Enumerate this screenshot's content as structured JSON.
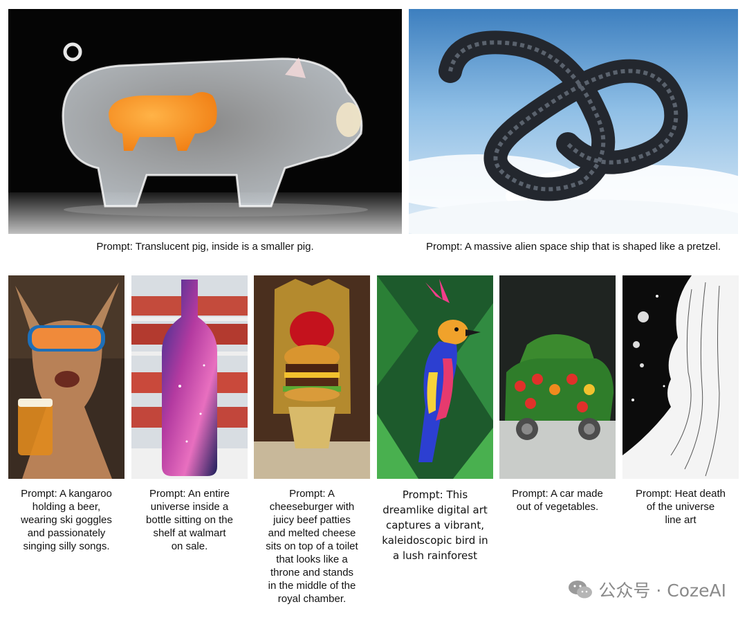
{
  "top_row": [
    {
      "id": "pig",
      "caption": "Prompt: Translucent pig, inside is a smaller pig."
    },
    {
      "id": "pretzel",
      "caption": "Prompt: A massive alien space ship that is shaped like a pretzel."
    }
  ],
  "bottom_row": [
    {
      "id": "kangaroo",
      "lines": [
        "Prompt: A kangaroo",
        "holding a beer,",
        "wearing ski goggles",
        "and passionately",
        "singing silly songs."
      ]
    },
    {
      "id": "bottle",
      "lines": [
        "Prompt: An entire",
        "universe inside a",
        "bottle sitting on the",
        "shelf at walmart",
        "on sale."
      ]
    },
    {
      "id": "burger",
      "lines": [
        "Prompt: A",
        "cheeseburger with",
        "juicy beef patties",
        "and melted cheese",
        "sits on top of a toilet",
        "that looks like a",
        "throne and stands",
        "in the middle of the",
        "royal chamber."
      ]
    },
    {
      "id": "bird",
      "lines": [
        "Prompt: This",
        "dreamlike digital art",
        "captures a vibrant,",
        "kaleidoscopic bird in",
        "a lush rainforest"
      ]
    },
    {
      "id": "car",
      "lines": [
        "Prompt: A car made",
        "out of vegetables."
      ]
    },
    {
      "id": "heatdeath",
      "lines": [
        "Prompt: Heat death",
        "of the universe",
        "line art"
      ]
    }
  ],
  "watermark": {
    "text": "公众号 · CozeAI",
    "icon": "wechat-icon"
  }
}
